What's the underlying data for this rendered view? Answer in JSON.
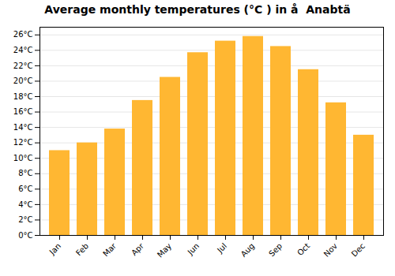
{
  "chart_data": {
    "type": "bar",
    "title": "Average monthly temperatures (°C ) in å  Anabtä",
    "categories": [
      "Jan",
      "Feb",
      "Mar",
      "Apr",
      "May",
      "Jun",
      "Jul",
      "Aug",
      "Sep",
      "Oct",
      "Nov",
      "Dec"
    ],
    "values": [
      11,
      12,
      13.8,
      17.5,
      20.5,
      23.7,
      25.2,
      25.8,
      24.5,
      21.5,
      17.2,
      13
    ],
    "color": "#FFB732",
    "ylim": [
      0,
      27
    ],
    "yticks": [
      {
        "value": 0,
        "label": "0°C"
      },
      {
        "value": 2,
        "label": "2°C"
      },
      {
        "value": 4,
        "label": "4°C"
      },
      {
        "value": 6,
        "label": "6°C"
      },
      {
        "value": 8,
        "label": "8°C"
      },
      {
        "value": 10,
        "label": "10°C"
      },
      {
        "value": 12,
        "label": "12°C"
      },
      {
        "value": 14,
        "label": "14°C"
      },
      {
        "value": 16,
        "label": "16°C"
      },
      {
        "value": 18,
        "label": "18°C"
      },
      {
        "value": 20,
        "label": "20°C"
      },
      {
        "value": 22,
        "label": "22°C"
      },
      {
        "value": 24,
        "label": "24°C"
      },
      {
        "value": 26,
        "label": "26°C"
      }
    ],
    "grid": true
  }
}
